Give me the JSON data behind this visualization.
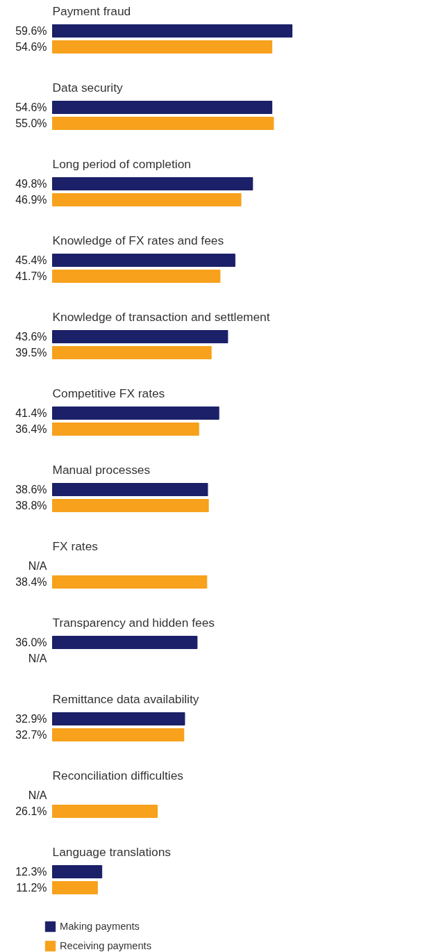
{
  "chart_data": {
    "type": "bar",
    "orientation": "horizontal",
    "legend": "bottom left",
    "grid": false,
    "categories": [
      "Payment fraud",
      "Data security",
      "Long period of completion",
      "Knowledge of FX rates and fees",
      "Knowledge of transaction and settlement",
      "Competitive FX rates",
      "Manual processes",
      "FX rates",
      "Transparency and hidden fees",
      "Remittance data availability",
      "Reconciliation difficulties",
      "Language translations"
    ],
    "series": [
      {
        "name": "Making payments",
        "color": "#1b2068",
        "values": [
          59.6,
          54.6,
          49.8,
          45.4,
          43.6,
          41.4,
          38.6,
          null,
          36.0,
          32.9,
          null,
          12.3
        ],
        "value_labels": [
          "59.6%",
          "54.6%",
          "49.8%",
          "45.4%",
          "43.6%",
          "41.4%",
          "38.6%",
          "N/A",
          "36.0%",
          "32.9%",
          "N/A",
          "12.3%"
        ]
      },
      {
        "name": "Receiving payments",
        "color": "#f7a11c",
        "values": [
          54.6,
          55.0,
          46.9,
          41.7,
          39.5,
          36.4,
          38.8,
          38.4,
          null,
          32.7,
          26.1,
          11.2
        ],
        "value_labels": [
          "54.6%",
          "55.0%",
          "46.9%",
          "41.7%",
          "39.5%",
          "36.4%",
          "38.8%",
          "38.4%",
          "N/A",
          "32.7%",
          "26.1%",
          "11.2%"
        ]
      }
    ]
  }
}
